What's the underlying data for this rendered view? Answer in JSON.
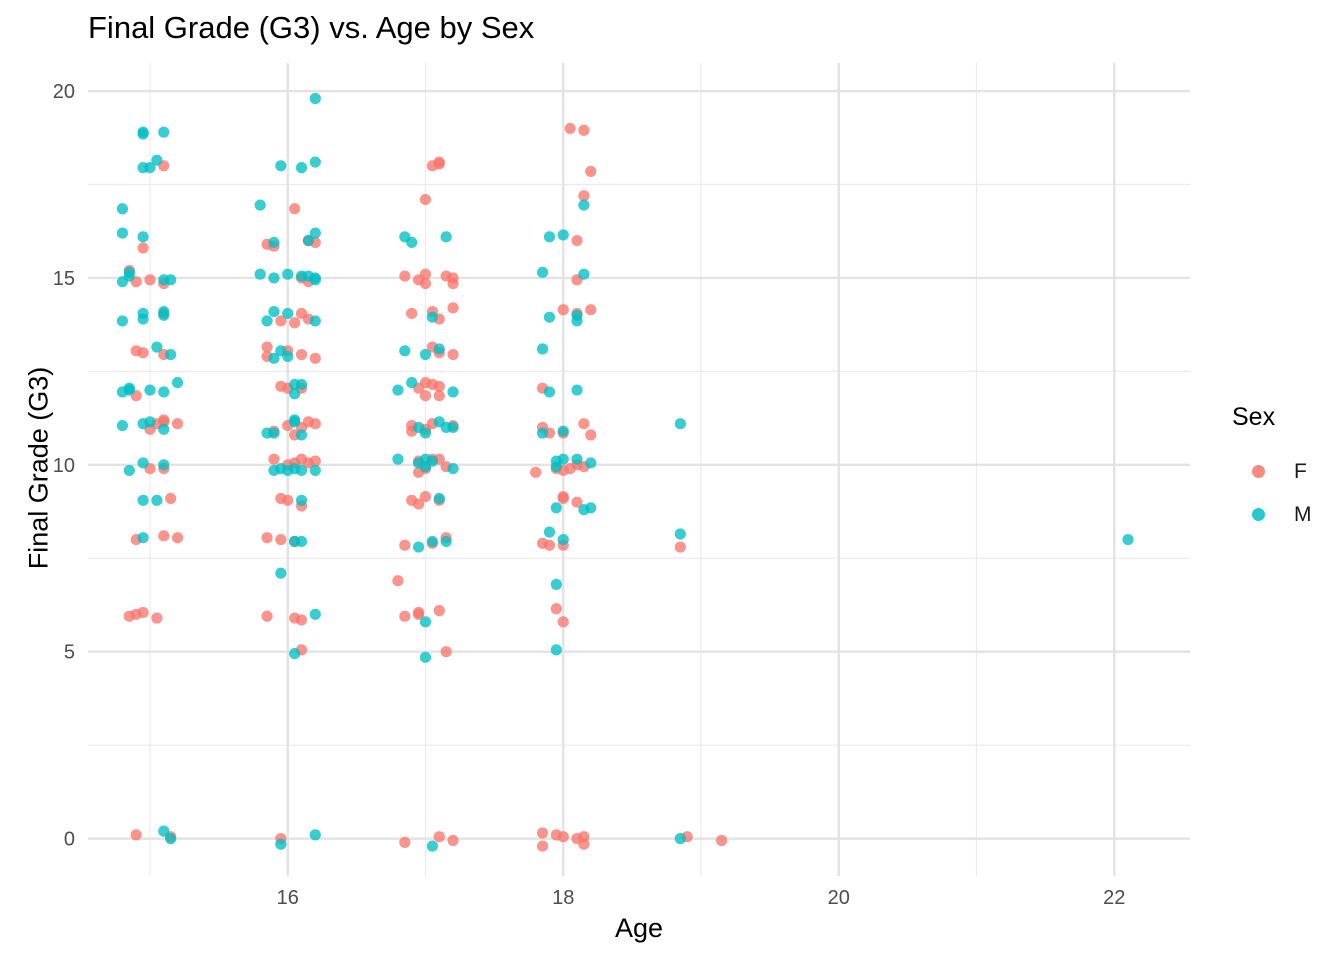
{
  "chart_data": {
    "type": "scatter",
    "title": "Final Grade (G3) vs. Age by Sex",
    "xlabel": "Age",
    "ylabel": "Final Grade (G3)",
    "xlim": [
      14.55,
      22.55
    ],
    "ylim": [
      -1,
      20.75
    ],
    "x_ticks": [
      16,
      18,
      20,
      22
    ],
    "y_ticks": [
      0,
      5,
      10,
      15,
      20
    ],
    "x_minor": [
      15,
      17,
      19,
      21
    ],
    "y_minor": [
      2.5,
      7.5,
      12.5,
      17.5
    ],
    "grid": true,
    "jitter": true,
    "legend": {
      "title": "Sex",
      "position": "right"
    },
    "series": [
      {
        "name": "F",
        "color": "#F8766D",
        "points": [
          [
            15.1,
            18.0
          ],
          [
            14.85,
            15.2
          ],
          [
            14.9,
            14.9
          ],
          [
            15.0,
            14.95
          ],
          [
            15.1,
            14.85
          ],
          [
            14.95,
            15.8
          ],
          [
            15.1,
            14.05
          ],
          [
            14.9,
            13.05
          ],
          [
            14.95,
            13.0
          ],
          [
            15.1,
            12.95
          ],
          [
            14.9,
            11.85
          ],
          [
            15.05,
            11.1
          ],
          [
            15.0,
            10.95
          ],
          [
            15.1,
            11.15
          ],
          [
            15.2,
            11.1
          ],
          [
            15.1,
            11.2
          ],
          [
            15.0,
            9.9
          ],
          [
            15.1,
            9.9
          ],
          [
            15.15,
            9.1
          ],
          [
            14.9,
            8.0
          ],
          [
            15.1,
            8.1
          ],
          [
            15.2,
            8.05
          ],
          [
            14.85,
            5.95
          ],
          [
            14.9,
            6.0
          ],
          [
            14.95,
            6.05
          ],
          [
            15.05,
            5.9
          ],
          [
            14.9,
            0.1
          ],
          [
            15.15,
            0.05
          ],
          [
            16.05,
            16.85
          ],
          [
            15.85,
            15.9
          ],
          [
            15.9,
            15.85
          ],
          [
            16.15,
            16.0
          ],
          [
            16.2,
            15.95
          ],
          [
            16.1,
            15.0
          ],
          [
            16.15,
            14.9
          ],
          [
            16.1,
            14.05
          ],
          [
            15.95,
            13.85
          ],
          [
            16.05,
            13.8
          ],
          [
            16.15,
            13.9
          ],
          [
            15.85,
            13.15
          ],
          [
            16.0,
            13.05
          ],
          [
            15.85,
            12.9
          ],
          [
            16.1,
            12.95
          ],
          [
            16.2,
            12.85
          ],
          [
            15.95,
            12.1
          ],
          [
            16.0,
            12.05
          ],
          [
            16.1,
            12.05
          ],
          [
            16.0,
            11.05
          ],
          [
            16.15,
            11.15
          ],
          [
            15.9,
            10.9
          ],
          [
            16.05,
            10.8
          ],
          [
            16.1,
            11.0
          ],
          [
            16.2,
            11.1
          ],
          [
            15.9,
            10.15
          ],
          [
            16.0,
            10.0
          ],
          [
            16.05,
            10.05
          ],
          [
            16.1,
            10.15
          ],
          [
            16.2,
            10.1
          ],
          [
            16.15,
            10.05
          ],
          [
            15.95,
            9.1
          ],
          [
            16.0,
            9.05
          ],
          [
            16.1,
            8.9
          ],
          [
            15.85,
            8.05
          ],
          [
            15.95,
            8.0
          ],
          [
            16.05,
            7.95
          ],
          [
            15.85,
            5.95
          ],
          [
            16.05,
            5.9
          ],
          [
            16.1,
            5.85
          ],
          [
            16.1,
            5.05
          ],
          [
            15.95,
            0.0
          ],
          [
            17.05,
            18.0
          ],
          [
            17.1,
            18.05
          ],
          [
            17.1,
            18.1
          ],
          [
            17.0,
            17.1
          ],
          [
            16.85,
            15.05
          ],
          [
            16.95,
            14.95
          ],
          [
            17.0,
            14.85
          ],
          [
            17.0,
            15.1
          ],
          [
            17.15,
            15.05
          ],
          [
            17.2,
            15.0
          ],
          [
            17.2,
            14.85
          ],
          [
            16.9,
            14.05
          ],
          [
            17.05,
            14.1
          ],
          [
            17.1,
            13.9
          ],
          [
            17.2,
            14.2
          ],
          [
            17.05,
            13.15
          ],
          [
            17.1,
            13.0
          ],
          [
            17.2,
            12.95
          ],
          [
            16.95,
            12.05
          ],
          [
            17.05,
            12.15
          ],
          [
            17.1,
            12.1
          ],
          [
            17.0,
            12.2
          ],
          [
            17.0,
            11.85
          ],
          [
            17.1,
            11.85
          ],
          [
            16.9,
            11.05
          ],
          [
            17.0,
            10.95
          ],
          [
            16.9,
            10.9
          ],
          [
            17.05,
            11.1
          ],
          [
            17.2,
            11.05
          ],
          [
            16.95,
            10.1
          ],
          [
            17.05,
            10.15
          ],
          [
            17.1,
            10.15
          ],
          [
            16.95,
            9.8
          ],
          [
            17.0,
            9.9
          ],
          [
            17.15,
            9.95
          ],
          [
            16.9,
            9.05
          ],
          [
            16.95,
            8.95
          ],
          [
            17.0,
            9.15
          ],
          [
            17.1,
            9.05
          ],
          [
            17.15,
            8.05
          ],
          [
            16.85,
            7.85
          ],
          [
            17.05,
            7.9
          ],
          [
            16.8,
            6.9
          ],
          [
            16.85,
            5.95
          ],
          [
            16.95,
            6.0
          ],
          [
            16.95,
            6.05
          ],
          [
            17.1,
            6.1
          ],
          [
            17.15,
            5.0
          ],
          [
            16.85,
            -0.1
          ],
          [
            17.1,
            0.05
          ],
          [
            17.2,
            -0.05
          ],
          [
            18.05,
            19.0
          ],
          [
            18.15,
            18.95
          ],
          [
            18.2,
            17.85
          ],
          [
            18.15,
            17.2
          ],
          [
            18.1,
            16.0
          ],
          [
            18.1,
            14.95
          ],
          [
            18.0,
            14.15
          ],
          [
            18.2,
            14.15
          ],
          [
            18.1,
            14.05
          ],
          [
            17.85,
            12.05
          ],
          [
            17.85,
            11.0
          ],
          [
            17.9,
            10.85
          ],
          [
            18.0,
            10.85
          ],
          [
            18.15,
            11.1
          ],
          [
            18.2,
            10.8
          ],
          [
            17.8,
            9.8
          ],
          [
            17.95,
            9.9
          ],
          [
            18.0,
            9.85
          ],
          [
            18.05,
            9.9
          ],
          [
            18.1,
            10.0
          ],
          [
            18.15,
            9.95
          ],
          [
            18.0,
            9.15
          ],
          [
            18.0,
            9.1
          ],
          [
            18.1,
            9.0
          ],
          [
            17.85,
            7.9
          ],
          [
            17.9,
            7.85
          ],
          [
            18.0,
            7.85
          ],
          [
            17.95,
            6.15
          ],
          [
            18.0,
            5.8
          ],
          [
            17.85,
            0.15
          ],
          [
            17.95,
            0.1
          ],
          [
            18.0,
            0.05
          ],
          [
            18.1,
            0.0
          ],
          [
            18.15,
            0.05
          ],
          [
            17.85,
            -0.2
          ],
          [
            18.15,
            -0.15
          ],
          [
            18.85,
            7.8
          ],
          [
            18.9,
            0.05
          ],
          [
            19.15,
            -0.05
          ]
        ]
      },
      {
        "name": "M",
        "color": "#00BFC4",
        "points": [
          [
            14.95,
            18.85
          ],
          [
            14.95,
            18.9
          ],
          [
            15.1,
            18.9
          ],
          [
            14.95,
            17.95
          ],
          [
            15.0,
            17.95
          ],
          [
            15.05,
            18.15
          ],
          [
            14.8,
            16.85
          ],
          [
            14.8,
            16.2
          ],
          [
            14.95,
            16.1
          ],
          [
            14.8,
            14.9
          ],
          [
            14.85,
            15.05
          ],
          [
            14.85,
            15.15
          ],
          [
            15.1,
            14.95
          ],
          [
            15.15,
            14.95
          ],
          [
            14.8,
            13.85
          ],
          [
            14.95,
            13.9
          ],
          [
            14.95,
            14.05
          ],
          [
            15.1,
            14.1
          ],
          [
            15.1,
            14.0
          ],
          [
            15.05,
            13.15
          ],
          [
            15.15,
            12.95
          ],
          [
            14.8,
            11.95
          ],
          [
            14.85,
            12.05
          ],
          [
            14.85,
            12.0
          ],
          [
            15.0,
            12.0
          ],
          [
            15.1,
            11.95
          ],
          [
            15.2,
            12.2
          ],
          [
            14.8,
            11.05
          ],
          [
            14.95,
            11.1
          ],
          [
            15.0,
            11.15
          ],
          [
            15.1,
            10.95
          ],
          [
            14.85,
            9.85
          ],
          [
            14.95,
            10.05
          ],
          [
            15.1,
            10.0
          ],
          [
            14.95,
            9.05
          ],
          [
            15.05,
            9.05
          ],
          [
            14.95,
            8.05
          ],
          [
            15.1,
            0.2
          ],
          [
            15.15,
            0.0
          ],
          [
            16.2,
            19.8
          ],
          [
            15.95,
            18.0
          ],
          [
            16.1,
            17.95
          ],
          [
            16.2,
            18.1
          ],
          [
            15.8,
            16.95
          ],
          [
            16.2,
            16.2
          ],
          [
            16.15,
            16.0
          ],
          [
            15.9,
            15.95
          ],
          [
            15.8,
            15.1
          ],
          [
            15.9,
            15.0
          ],
          [
            16.0,
            15.1
          ],
          [
            16.1,
            15.05
          ],
          [
            16.15,
            15.05
          ],
          [
            16.2,
            14.95
          ],
          [
            16.2,
            15.0
          ],
          [
            15.9,
            14.1
          ],
          [
            16.0,
            14.05
          ],
          [
            15.85,
            13.85
          ],
          [
            16.2,
            13.85
          ],
          [
            15.95,
            13.05
          ],
          [
            15.9,
            12.85
          ],
          [
            16.0,
            12.9
          ],
          [
            16.05,
            12.15
          ],
          [
            16.1,
            12.15
          ],
          [
            16.05,
            11.9
          ],
          [
            16.05,
            11.2
          ],
          [
            16.05,
            11.15
          ],
          [
            15.85,
            10.85
          ],
          [
            15.9,
            10.85
          ],
          [
            16.1,
            10.8
          ],
          [
            15.9,
            9.85
          ],
          [
            15.95,
            9.9
          ],
          [
            16.0,
            9.85
          ],
          [
            16.05,
            9.9
          ],
          [
            16.1,
            9.85
          ],
          [
            16.2,
            9.85
          ],
          [
            16.1,
            9.05
          ],
          [
            16.05,
            7.95
          ],
          [
            16.1,
            7.95
          ],
          [
            15.95,
            7.1
          ],
          [
            16.2,
            6.0
          ],
          [
            16.05,
            4.95
          ],
          [
            15.95,
            -0.15
          ],
          [
            16.2,
            0.1
          ],
          [
            16.85,
            16.1
          ],
          [
            16.9,
            15.95
          ],
          [
            17.15,
            16.1
          ],
          [
            17.05,
            13.95
          ],
          [
            16.85,
            13.05
          ],
          [
            17.1,
            13.1
          ],
          [
            17.0,
            12.95
          ],
          [
            16.8,
            12.0
          ],
          [
            16.9,
            12.2
          ],
          [
            17.2,
            11.95
          ],
          [
            17.1,
            11.15
          ],
          [
            17.15,
            11.0
          ],
          [
            17.2,
            11.0
          ],
          [
            16.95,
            11.0
          ],
          [
            17.0,
            10.85
          ],
          [
            16.8,
            10.15
          ],
          [
            16.95,
            10.05
          ],
          [
            17.0,
            10.15
          ],
          [
            17.05,
            10.1
          ],
          [
            17.0,
            9.95
          ],
          [
            17.2,
            9.9
          ],
          [
            17.1,
            9.1
          ],
          [
            17.05,
            7.95
          ],
          [
            17.15,
            7.95
          ],
          [
            16.95,
            7.8
          ],
          [
            17.0,
            5.8
          ],
          [
            17.0,
            4.85
          ],
          [
            17.05,
            -0.2
          ],
          [
            18.0,
            16.15
          ],
          [
            17.9,
            16.1
          ],
          [
            18.15,
            16.95
          ],
          [
            17.85,
            15.15
          ],
          [
            18.15,
            15.1
          ],
          [
            17.9,
            13.95
          ],
          [
            18.1,
            13.85
          ],
          [
            18.1,
            14.0
          ],
          [
            17.85,
            13.1
          ],
          [
            17.9,
            11.95
          ],
          [
            18.1,
            12.0
          ],
          [
            17.85,
            10.85
          ],
          [
            18.0,
            10.9
          ],
          [
            17.95,
            10.1
          ],
          [
            18.0,
            10.15
          ],
          [
            17.95,
            9.95
          ],
          [
            18.1,
            10.15
          ],
          [
            18.2,
            10.05
          ],
          [
            17.95,
            8.85
          ],
          [
            18.15,
            8.8
          ],
          [
            18.2,
            8.85
          ],
          [
            17.9,
            8.2
          ],
          [
            18.0,
            8.0
          ],
          [
            17.95,
            6.8
          ],
          [
            17.95,
            5.05
          ],
          [
            18.85,
            11.1
          ],
          [
            18.85,
            8.15
          ],
          [
            18.85,
            0.0
          ],
          [
            22.1,
            8.0
          ]
        ]
      }
    ]
  }
}
